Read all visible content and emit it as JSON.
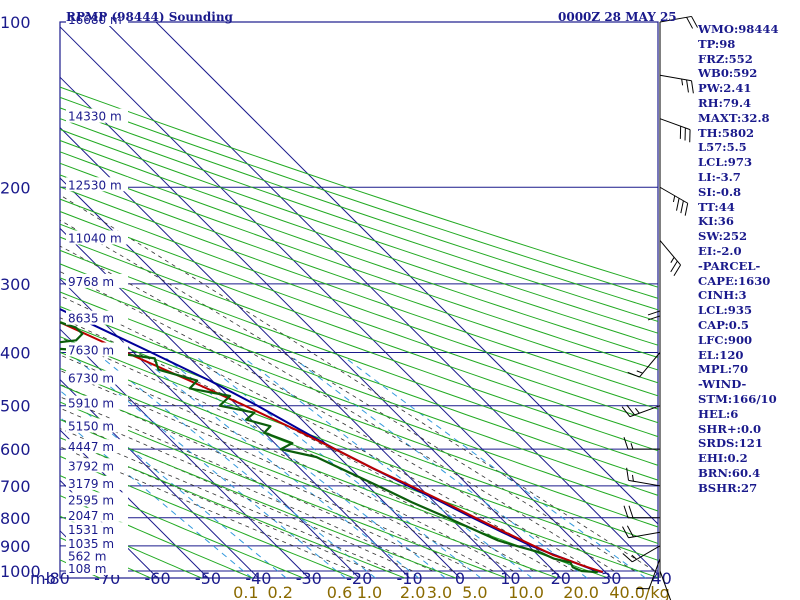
{
  "header": {
    "station_title": "RPMP (98444) Sounding",
    "valid_time": "0000Z 28 MAY 25"
  },
  "indices": [
    "WMO:98444",
    "TP:98",
    "FRZ:552",
    "WB0:592",
    "PW:2.41",
    "RH:79.4",
    "MAXT:32.8",
    "TH:5802",
    "L57:5.5",
    "LCL:973",
    "LI:-3.7",
    "SI:-0.8",
    "TT:44",
    "KI:36",
    "SW:252",
    "EI:-2.0",
    "-PARCEL-",
    "CAPE:1630",
    "CINH:3",
    "LCL:935",
    "CAP:0.5",
    "LFC:900",
    "EL:120",
    "MPL:70",
    "-WIND-",
    "STM:166/10",
    "HEL:6",
    "SHR+:0.0",
    "SRDS:121",
    "EHI:0.2",
    "BRN:60.4",
    "BSHR:27"
  ],
  "colors": {
    "frame": "#1a1a8c",
    "isobar": "#1a1a8c",
    "dry_adiabat": "#22aa22",
    "moist_adiabat": "#333333",
    "mixing_ratio": "#3399dd",
    "temperature": "#000099",
    "parcel": "#bb0000",
    "dewpoint": "#0b5e0b",
    "mr_label": "#8a6a00"
  },
  "chart_data": {
    "type": "skew-t log-p sounding",
    "x_unit_label": "mb",
    "pressure_ticks": [
      100,
      200,
      300,
      400,
      500,
      600,
      700,
      800,
      900,
      1000
    ],
    "temperature_ticks": [
      -80,
      -70,
      -60,
      -50,
      -40,
      -30,
      -20,
      -10,
      0,
      10,
      20,
      30,
      40
    ],
    "height_labels": [
      {
        "p": 100,
        "label": "16680 m"
      },
      {
        "p": 150,
        "label": "14330 m"
      },
      {
        "p": 200,
        "label": "12530 m"
      },
      {
        "p": 250,
        "label": "11040 m"
      },
      {
        "p": 300,
        "label": "9768 m"
      },
      {
        "p": 350,
        "label": "8635 m"
      },
      {
        "p": 400,
        "label": "7630 m"
      },
      {
        "p": 450,
        "label": "6730 m"
      },
      {
        "p": 500,
        "label": "5910 m"
      },
      {
        "p": 550,
        "label": "5150 m"
      },
      {
        "p": 600,
        "label": "4447 m"
      },
      {
        "p": 650,
        "label": "3792 m"
      },
      {
        "p": 700,
        "label": "3179 m"
      },
      {
        "p": 750,
        "label": "2595 m"
      },
      {
        "p": 800,
        "label": "2047 m"
      },
      {
        "p": 850,
        "label": "1531 m"
      },
      {
        "p": 900,
        "label": "1035 m"
      },
      {
        "p": 950,
        "label": "562 m"
      },
      {
        "p": 1000,
        "label": "108 m"
      }
    ],
    "mixing_ratio_labels": [
      "0.1",
      "0.2",
      "0.6",
      "1.0",
      "2.0",
      "3.0",
      "5.0",
      "10.0",
      "20.0",
      "40.0"
    ],
    "mixing_ratio_unit": "g/kg",
    "series": [
      {
        "key": "temperature",
        "points": [
          [
            1005,
            29.5
          ],
          [
            1000,
            28.5
          ],
          [
            950,
            24.5
          ],
          [
            925,
            22.5
          ],
          [
            900,
            20.5
          ],
          [
            850,
            17.5
          ],
          [
            800,
            14.5
          ],
          [
            750,
            11.5
          ],
          [
            700,
            8.0
          ],
          [
            650,
            4.5
          ],
          [
            600,
            0.8
          ],
          [
            550,
            -2.5
          ],
          [
            500,
            -6.0
          ],
          [
            450,
            -10.5
          ],
          [
            400,
            -16.5
          ],
          [
            350,
            -23.5
          ],
          [
            300,
            -31.5
          ],
          [
            250,
            -40.5
          ],
          [
            200,
            -51.5
          ],
          [
            150,
            -64.5
          ],
          [
            120,
            -73.5
          ],
          [
            100,
            -78
          ]
        ]
      },
      {
        "key": "parcel",
        "points": [
          [
            1005,
            29.5
          ],
          [
            980,
            27.0
          ],
          [
            950,
            24.5
          ],
          [
            935,
            23.0
          ],
          [
            900,
            21.0
          ],
          [
            850,
            18.0
          ],
          [
            800,
            15.0
          ],
          [
            750,
            12.0
          ],
          [
            700,
            8.5
          ],
          [
            650,
            4.5
          ],
          [
            600,
            0.8
          ],
          [
            550,
            -3.5
          ],
          [
            500,
            -8.5
          ],
          [
            450,
            -14.5
          ],
          [
            400,
            -21.5
          ],
          [
            350,
            -29.0
          ],
          [
            300,
            -37.5
          ],
          [
            250,
            -47.0
          ],
          [
            200,
            -57.5
          ],
          [
            150,
            -70.0
          ],
          [
            120,
            -77.5
          ],
          [
            100,
            -83
          ]
        ]
      },
      {
        "key": "dewpoint",
        "points": [
          [
            1005,
            28.5
          ],
          [
            1000,
            25.5
          ],
          [
            985,
            24.5
          ],
          [
            965,
            25.0
          ],
          [
            950,
            22.5
          ],
          [
            925,
            21.0
          ],
          [
            900,
            17.5
          ],
          [
            880,
            15.0
          ],
          [
            850,
            13.0
          ],
          [
            800,
            9.5
          ],
          [
            750,
            5.5
          ],
          [
            700,
            2.0
          ],
          [
            650,
            -2.0
          ],
          [
            620,
            -4.5
          ],
          [
            600,
            -10.0
          ],
          [
            585,
            -6.5
          ],
          [
            560,
            -10.0
          ],
          [
            545,
            -7.5
          ],
          [
            530,
            -11.0
          ],
          [
            515,
            -8.0
          ],
          [
            500,
            -13.5
          ],
          [
            480,
            -9.5
          ],
          [
            465,
            -16.0
          ],
          [
            450,
            -13.0
          ],
          [
            430,
            -18.5
          ],
          [
            410,
            -17.0
          ],
          [
            400,
            -24.5
          ],
          [
            390,
            -40.5
          ],
          [
            380,
            -29.0
          ],
          [
            370,
            -26.5
          ],
          [
            360,
            -26.5
          ],
          [
            350,
            -29.5
          ],
          [
            330,
            -31.5
          ],
          [
            310,
            -36.0
          ],
          [
            300,
            -37.5
          ],
          [
            285,
            -40.0
          ],
          [
            270,
            -44.0
          ],
          [
            260,
            -44.0
          ],
          [
            255,
            -47.5
          ],
          [
            250,
            -46.0
          ],
          [
            240,
            -52.5
          ],
          [
            220,
            -54.5
          ],
          [
            200,
            -57.5
          ],
          [
            190,
            -62.0
          ],
          [
            170,
            -64.5
          ],
          [
            160,
            -67.5
          ],
          [
            150,
            -73.5
          ],
          [
            130,
            -83
          ],
          [
            115,
            -88
          ],
          [
            100,
            -93
          ]
        ]
      }
    ],
    "wind_barbs": [
      {
        "p": 1000,
        "dir": 160,
        "spd": 5
      },
      {
        "p": 950,
        "dir": 200,
        "spd": 10
      },
      {
        "p": 900,
        "dir": 240,
        "spd": 15
      },
      {
        "p": 850,
        "dir": 260,
        "spd": 20
      },
      {
        "p": 800,
        "dir": 270,
        "spd": 20
      },
      {
        "p": 700,
        "dir": 280,
        "spd": 15
      },
      {
        "p": 600,
        "dir": 270,
        "spd": 15
      },
      {
        "p": 500,
        "dir": 250,
        "spd": 25
      },
      {
        "p": 400,
        "dir": 220,
        "spd": 15
      },
      {
        "p": 300,
        "dir": 180,
        "spd": 20
      },
      {
        "p": 250,
        "dir": 140,
        "spd": 25
      },
      {
        "p": 200,
        "dir": 120,
        "spd": 35
      },
      {
        "p": 150,
        "dir": 110,
        "spd": 30
      },
      {
        "p": 125,
        "dir": 100,
        "spd": 25
      },
      {
        "p": 100,
        "dir": 80,
        "spd": 20
      }
    ]
  }
}
